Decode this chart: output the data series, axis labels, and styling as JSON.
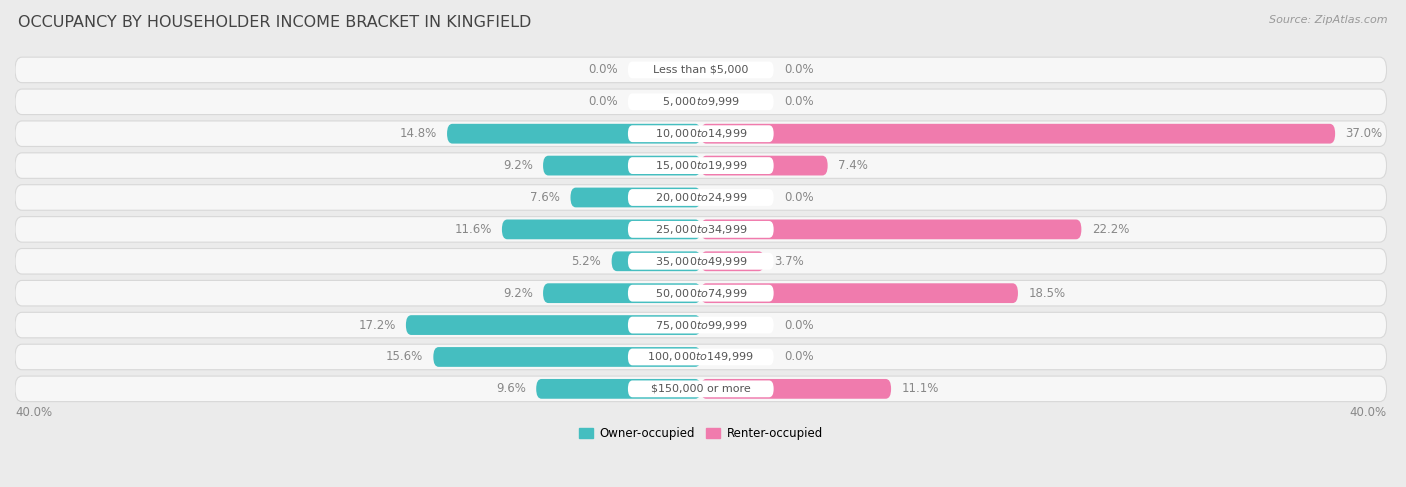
{
  "title": "OCCUPANCY BY HOUSEHOLDER INCOME BRACKET IN KINGFIELD",
  "source": "Source: ZipAtlas.com",
  "categories": [
    "Less than $5,000",
    "$5,000 to $9,999",
    "$10,000 to $14,999",
    "$15,000 to $19,999",
    "$20,000 to $24,999",
    "$25,000 to $34,999",
    "$35,000 to $49,999",
    "$50,000 to $74,999",
    "$75,000 to $99,999",
    "$100,000 to $149,999",
    "$150,000 or more"
  ],
  "owner_values": [
    0.0,
    0.0,
    14.8,
    9.2,
    7.6,
    11.6,
    5.2,
    9.2,
    17.2,
    15.6,
    9.6
  ],
  "renter_values": [
    0.0,
    0.0,
    37.0,
    7.4,
    0.0,
    22.2,
    3.7,
    18.5,
    0.0,
    0.0,
    11.1
  ],
  "owner_color": "#45bec0",
  "renter_color": "#f07bad",
  "owner_label": "Owner-occupied",
  "renter_label": "Renter-occupied",
  "axis_limit": 40.0,
  "bar_height": 0.62,
  "bg_color": "#ebebeb",
  "row_bg_color": "#f7f7f7",
  "title_fontsize": 11.5,
  "label_fontsize": 8.5,
  "category_fontsize": 8.0,
  "axis_label_fontsize": 8.5,
  "source_fontsize": 8.0,
  "value_text_color": "#888888",
  "row_border_color": "#d8d8d8",
  "center_label_bg": "#ffffff"
}
